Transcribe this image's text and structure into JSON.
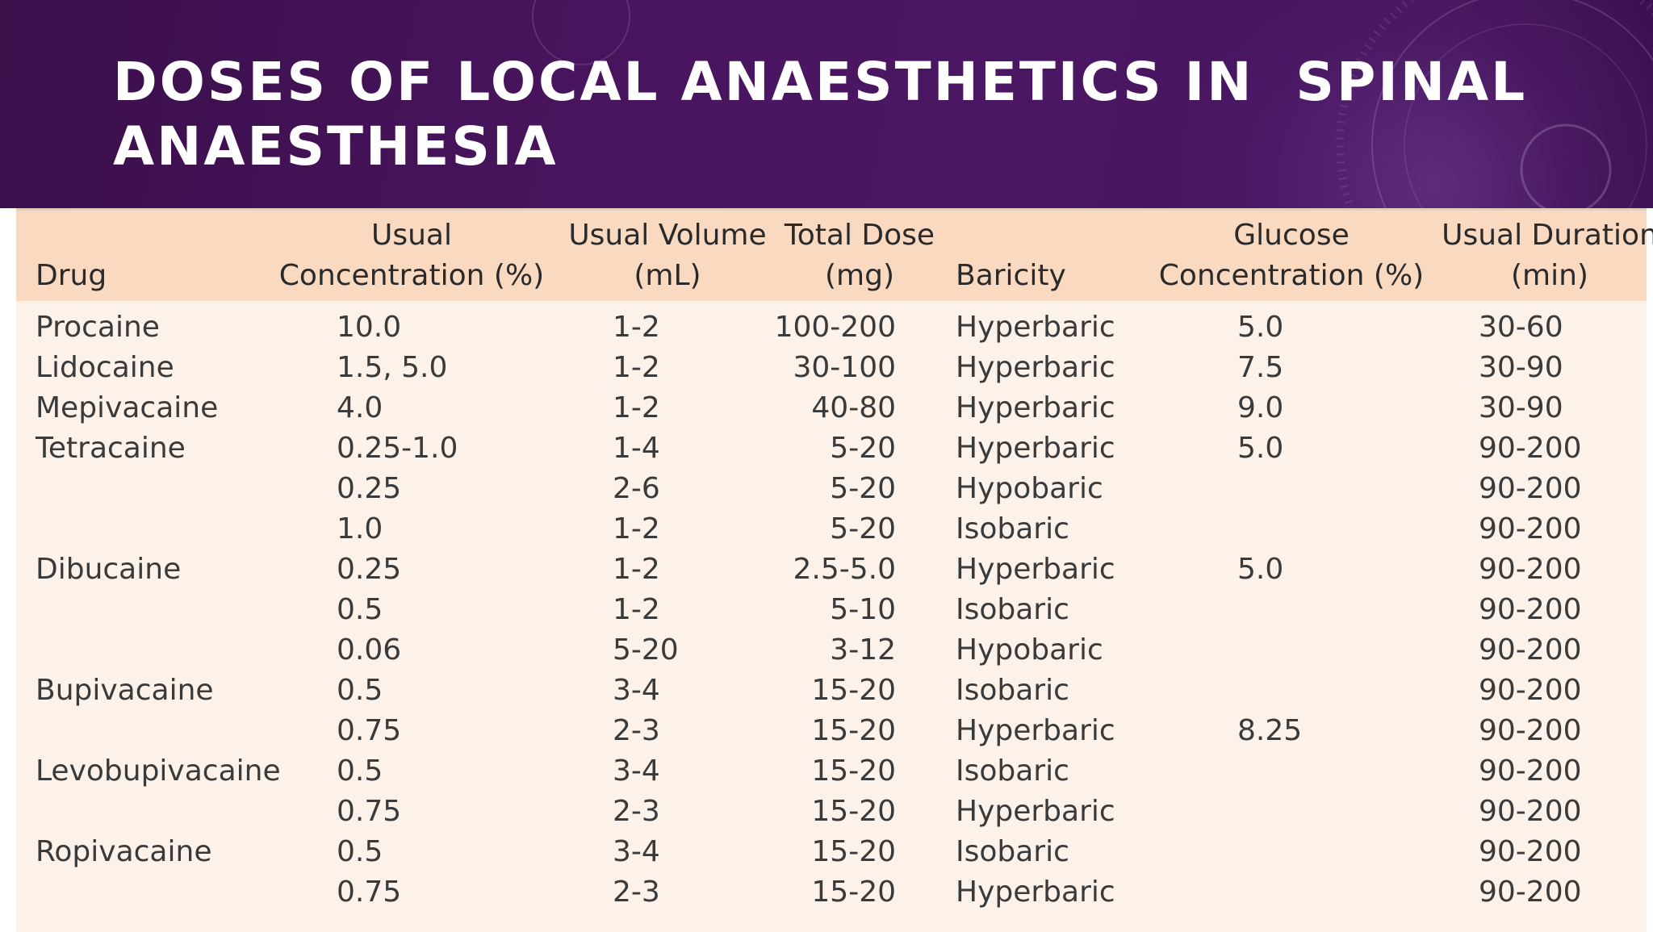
{
  "slide": {
    "title": "DOSES OF LOCAL ANAESTHETICS IN  SPINAL ANAESTHESIA"
  },
  "table": {
    "headers": {
      "drug": "Drug",
      "concentration": "Usual\nConcentration (%)",
      "volume": "Usual Volume\n(mL)",
      "dose": "Total Dose\n(mg)",
      "baricity": "Baricity",
      "glucose": "Glucose\nConcentration (%)",
      "duration": "Usual Duration\n(min)"
    },
    "rows": [
      {
        "drug": "Procaine",
        "concentration": "10.0",
        "volume": "1-2",
        "dose": "100-200",
        "baricity": "Hyperbaric",
        "glucose": "5.0",
        "duration": "30-60"
      },
      {
        "drug": "Lidocaine",
        "concentration": "1.5, 5.0",
        "volume": "1-2",
        "dose": "30-100",
        "baricity": "Hyperbaric",
        "glucose": "7.5",
        "duration": "30-90"
      },
      {
        "drug": "Mepivacaine",
        "concentration": "4.0",
        "volume": "1-2",
        "dose": "40-80",
        "baricity": "Hyperbaric",
        "glucose": "9.0",
        "duration": "30-90"
      },
      {
        "drug": "Tetracaine",
        "concentration": "0.25-1.0",
        "volume": "1-4",
        "dose": "5-20",
        "baricity": "Hyperbaric",
        "glucose": "5.0",
        "duration": "90-200"
      },
      {
        "drug": "",
        "concentration": "0.25",
        "volume": "2-6",
        "dose": "5-20",
        "baricity": "Hypobaric",
        "glucose": "",
        "duration": "90-200"
      },
      {
        "drug": "",
        "concentration": "1.0",
        "volume": "1-2",
        "dose": "5-20",
        "baricity": "Isobaric",
        "glucose": "",
        "duration": "90-200"
      },
      {
        "drug": "Dibucaine",
        "concentration": "0.25",
        "volume": "1-2",
        "dose": "2.5-5.0",
        "baricity": "Hyperbaric",
        "glucose": "5.0",
        "duration": "90-200"
      },
      {
        "drug": "",
        "concentration": "0.5",
        "volume": "1-2",
        "dose": "5-10",
        "baricity": "Isobaric",
        "glucose": "",
        "duration": "90-200"
      },
      {
        "drug": "",
        "concentration": "0.06",
        "volume": "5-20",
        "dose": "3-12",
        "baricity": "Hypobaric",
        "glucose": "",
        "duration": "90-200"
      },
      {
        "drug": "Bupivacaine",
        "concentration": "0.5",
        "volume": "3-4",
        "dose": "15-20",
        "baricity": "Isobaric",
        "glucose": "",
        "duration": "90-200"
      },
      {
        "drug": "",
        "concentration": "0.75",
        "volume": "2-3",
        "dose": "15-20",
        "baricity": "Hyperbaric",
        "glucose": "8.25",
        "duration": "90-200"
      },
      {
        "drug": "Levobupivacaine",
        "concentration": "0.5",
        "volume": "3-4",
        "dose": "15-20",
        "baricity": "Isobaric",
        "glucose": "",
        "duration": "90-200"
      },
      {
        "drug": "",
        "concentration": "0.75",
        "volume": "2-3",
        "dose": "15-20",
        "baricity": "Hyperbaric",
        "glucose": "",
        "duration": "90-200"
      },
      {
        "drug": "Ropivacaine",
        "concentration": "0.5",
        "volume": "3-4",
        "dose": "15-20",
        "baricity": "Isobaric",
        "glucose": "",
        "duration": "90-200"
      },
      {
        "drug": "",
        "concentration": "0.75",
        "volume": "2-3",
        "dose": "15-20",
        "baricity": "Hyperbaric",
        "glucose": "",
        "duration": "90-200"
      }
    ]
  },
  "colors": {
    "header_band": "#4a1560",
    "table_header_bg": "#fad9c1",
    "table_body_bg": "#fcf2ea",
    "title_text": "#ffffff"
  }
}
